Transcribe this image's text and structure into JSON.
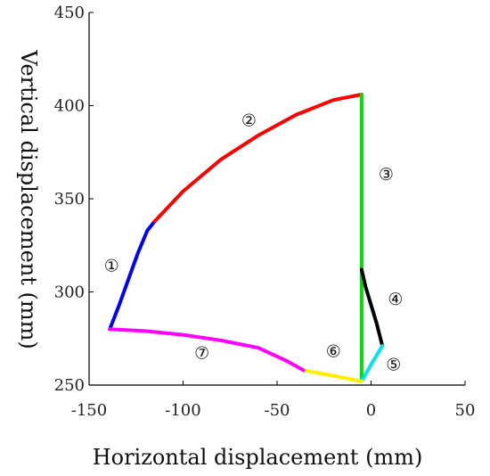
{
  "chart_data": {
    "type": "line",
    "title": "",
    "xlabel": "Horizontal displacement (mm)",
    "ylabel": "Vertical displacement (mm)",
    "xlim": [
      -150,
      50
    ],
    "ylim": [
      250,
      450
    ],
    "xticks": [
      -150,
      -100,
      -50,
      0,
      50
    ],
    "yticks": [
      250,
      300,
      350,
      400,
      450
    ],
    "xtick_labels": [
      "-150",
      "-100",
      "-50",
      "0",
      "50"
    ],
    "ytick_labels": [
      "250",
      "300",
      "350",
      "400",
      "450"
    ],
    "grid": false,
    "series": [
      {
        "label": "①",
        "color": "#0000ff",
        "x": [
          -139,
          -134,
          -129,
          -124,
          -119,
          -115
        ],
        "y": [
          280,
          293,
          307,
          321,
          333,
          338
        ],
        "label_pos": [
          -138,
          311
        ]
      },
      {
        "label": "②",
        "color": "#ff0000",
        "x": [
          -115,
          -100,
          -80,
          -60,
          -40,
          -20,
          -5
        ],
        "y": [
          338,
          354,
          371,
          384,
          395,
          403,
          406
        ],
        "label_pos": [
          -65,
          389
        ]
      },
      {
        "label": "③",
        "color": "#00e000",
        "x": [
          -5,
          -5
        ],
        "y": [
          406,
          253
        ],
        "label_pos": [
          8,
          360
        ]
      },
      {
        "label": "④",
        "color": "#000000",
        "x": [
          -5,
          -3,
          0,
          3,
          6
        ],
        "y": [
          312,
          303,
          293,
          283,
          271
        ],
        "label_pos": [
          13,
          293
        ]
      },
      {
        "label": "⑤",
        "color": "#00e5ee",
        "x": [
          -5,
          0,
          6
        ],
        "y": [
          252,
          261,
          271
        ],
        "label_pos": [
          12,
          258
        ]
      },
      {
        "label": "⑥",
        "color": "#ffee00",
        "x": [
          -5,
          -20,
          -36
        ],
        "y": [
          252,
          255,
          258
        ],
        "label_pos": [
          -20,
          265
        ]
      },
      {
        "label": "⑦",
        "color": "#ff00ff",
        "x": [
          -139,
          -120,
          -100,
          -80,
          -60,
          -45,
          -36
        ],
        "y": [
          280,
          279,
          277,
          274,
          270,
          263,
          258
        ],
        "label_pos": [
          -90,
          264
        ]
      }
    ]
  }
}
